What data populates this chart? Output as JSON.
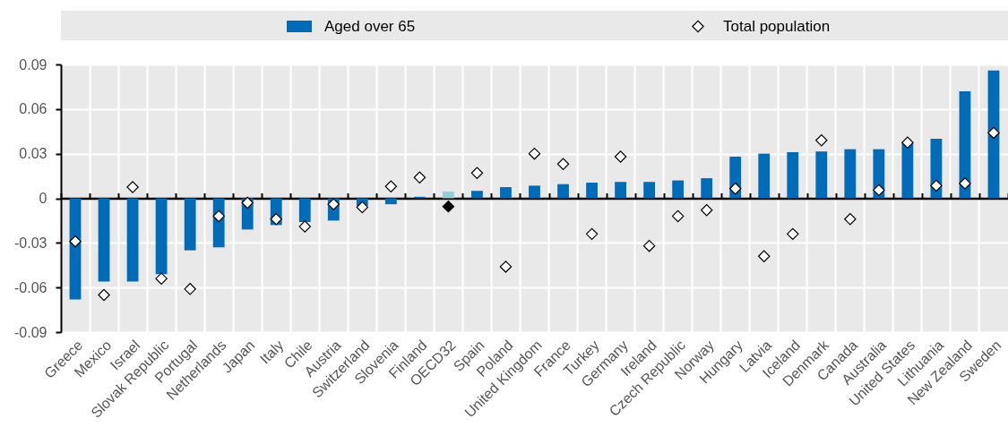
{
  "chart_data": {
    "type": "bar",
    "categories": [
      "Greece",
      "Mexico",
      "Israel",
      "Slovak Republic",
      "Portugal",
      "Netherlands",
      "Japan",
      "Italy",
      "Chile",
      "Austria",
      "Switzerland",
      "Slovenia",
      "Finland",
      "OECD32",
      "Spain",
      "Poland",
      "United Kingdom",
      "France",
      "Turkey",
      "Germany",
      "Ireland",
      "Czech Republic",
      "Norway",
      "Hungary",
      "Latvia",
      "Iceland",
      "Denmark",
      "Canada",
      "Australia",
      "United States",
      "Lithuania",
      "New Zealand",
      "Sweden"
    ],
    "series": [
      {
        "name": "Aged over 65",
        "type": "bar",
        "color": "#006bb6",
        "colors": [
          "#006bb6",
          "#006bb6",
          "#006bb6",
          "#006bb6",
          "#006bb6",
          "#006bb6",
          "#006bb6",
          "#006bb6",
          "#006bb6",
          "#006bb6",
          "#006bb6",
          "#006bb6",
          "#006bb6",
          "#93cfd6",
          "#006bb6",
          "#006bb6",
          "#006bb6",
          "#006bb6",
          "#006bb6",
          "#006bb6",
          "#006bb6",
          "#006bb6",
          "#006bb6",
          "#006bb6",
          "#006bb6",
          "#006bb6",
          "#006bb6",
          "#006bb6",
          "#006bb6",
          "#006bb6",
          "#006bb6",
          "#006bb6",
          "#006bb6"
        ],
        "values": [
          -0.068,
          -0.056,
          -0.056,
          -0.051,
          -0.035,
          -0.033,
          -0.021,
          -0.018,
          -0.016,
          -0.015,
          -0.005,
          -0.004,
          0.001,
          0.0045,
          0.005,
          0.0075,
          0.0085,
          0.0095,
          0.0105,
          0.011,
          0.011,
          0.012,
          0.0135,
          0.028,
          0.03,
          0.031,
          0.0315,
          0.033,
          0.033,
          0.0375,
          0.04,
          0.072,
          0.086
        ]
      },
      {
        "name": "Total population",
        "type": "scatter",
        "color": "#ffffff",
        "colors": [
          "#ffffff",
          "#ffffff",
          "#ffffff",
          "#ffffff",
          "#ffffff",
          "#ffffff",
          "#ffffff",
          "#ffffff",
          "#ffffff",
          "#ffffff",
          "#ffffff",
          "#ffffff",
          "#ffffff",
          "#000000",
          "#ffffff",
          "#ffffff",
          "#ffffff",
          "#ffffff",
          "#ffffff",
          "#ffffff",
          "#ffffff",
          "#ffffff",
          "#ffffff",
          "#ffffff",
          "#ffffff",
          "#ffffff",
          "#ffffff",
          "#ffffff",
          "#ffffff",
          "#ffffff",
          "#ffffff",
          "#ffffff",
          "#ffffff"
        ],
        "values": [
          -0.029,
          -0.065,
          0.0075,
          -0.054,
          -0.061,
          -0.012,
          -0.003,
          -0.014,
          -0.019,
          -0.004,
          -0.006,
          0.008,
          0.014,
          -0.0055,
          0.017,
          -0.046,
          0.03,
          0.023,
          -0.024,
          0.028,
          -0.032,
          -0.012,
          -0.008,
          0.0065,
          -0.039,
          -0.024,
          0.039,
          -0.014,
          0.0055,
          0.0375,
          0.0085,
          0.01,
          0.044
        ]
      }
    ],
    "ylim": [
      -0.09,
      0.09
    ],
    "yticks": [
      -0.09,
      -0.06,
      -0.03,
      0,
      0.03,
      0.06,
      0.09
    ],
    "grid": true,
    "legend": "top",
    "marker": "diamond"
  }
}
